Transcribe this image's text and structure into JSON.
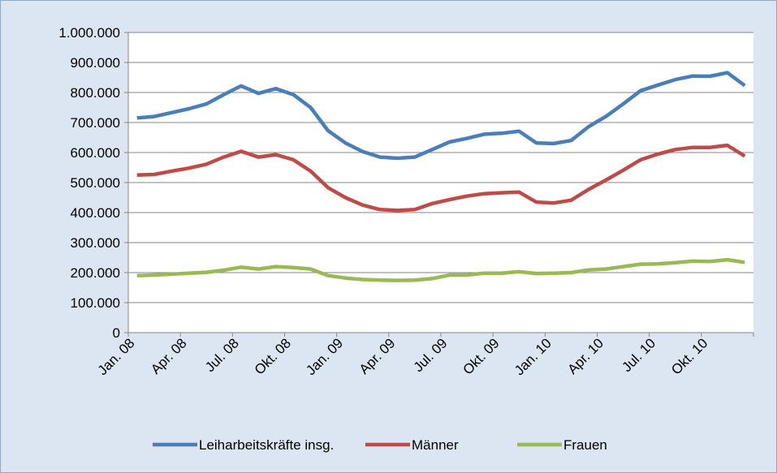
{
  "chart_data": {
    "type": "line",
    "categories": [
      "Jan. 08",
      null,
      null,
      "Apr. 08",
      null,
      null,
      "Jul. 08",
      null,
      null,
      "Okt. 08",
      null,
      null,
      "Jan. 09",
      null,
      null,
      "Apr. 09",
      null,
      null,
      "Jul. 09",
      null,
      null,
      "Okt. 09",
      null,
      null,
      "Jan. 10",
      null,
      null,
      "Apr. 10",
      null,
      null,
      "Jul. 10",
      null,
      null,
      "Okt. 10",
      null,
      null
    ],
    "series": [
      {
        "name": "Leiharbeitskräfte insg.",
        "color": "#4a7ebb",
        "values": [
          715000,
          720000,
          733000,
          746000,
          762000,
          793000,
          822000,
          797000,
          813000,
          793000,
          750000,
          673000,
          632000,
          603000,
          585000,
          581000,
          585000,
          610000,
          635000,
          647000,
          661000,
          664000,
          671000,
          632000,
          630000,
          640000,
          686000,
          720000,
          762000,
          806000,
          825000,
          843000,
          855000,
          854000,
          866000,
          823000
        ]
      },
      {
        "name": "Männer",
        "color": "#be4b48",
        "values": [
          525000,
          527000,
          538000,
          548000,
          561000,
          585000,
          604000,
          585000,
          593000,
          576000,
          538000,
          483000,
          450000,
          425000,
          410000,
          407000,
          410000,
          430000,
          443000,
          455000,
          463000,
          466000,
          468000,
          435000,
          432000,
          441000,
          477000,
          508000,
          541000,
          576000,
          595000,
          610000,
          617000,
          617000,
          624000,
          588000
        ]
      },
      {
        "name": "Frauen",
        "color": "#98b954",
        "values": [
          190000,
          192000,
          195000,
          198000,
          201000,
          208000,
          218000,
          212000,
          220000,
          217000,
          212000,
          190000,
          182000,
          177000,
          175000,
          174000,
          175000,
          180000,
          192000,
          192000,
          198000,
          198000,
          203000,
          197000,
          198000,
          200000,
          209000,
          212000,
          220000,
          228000,
          229000,
          233000,
          238000,
          237000,
          243000,
          234000
        ]
      }
    ],
    "ylim": [
      0,
      1000000
    ],
    "yticks": [
      0,
      {
        "value": 100000,
        "label": "100.000"
      },
      {
        "value": 200000,
        "label": "200.000"
      },
      {
        "value": 300000,
        "label": "300.000"
      },
      {
        "value": 400000,
        "label": "400.000"
      },
      {
        "value": 500000,
        "label": "500.000"
      },
      {
        "value": 600000,
        "label": "600.000"
      },
      {
        "value": 700000,
        "label": "700.000"
      },
      {
        "value": 800000,
        "label": "800.000"
      },
      {
        "value": 900000,
        "label": "900.000"
      },
      {
        "value": 1000000,
        "label": "1.000.000"
      }
    ],
    "grid": true,
    "legend": "bottom"
  }
}
